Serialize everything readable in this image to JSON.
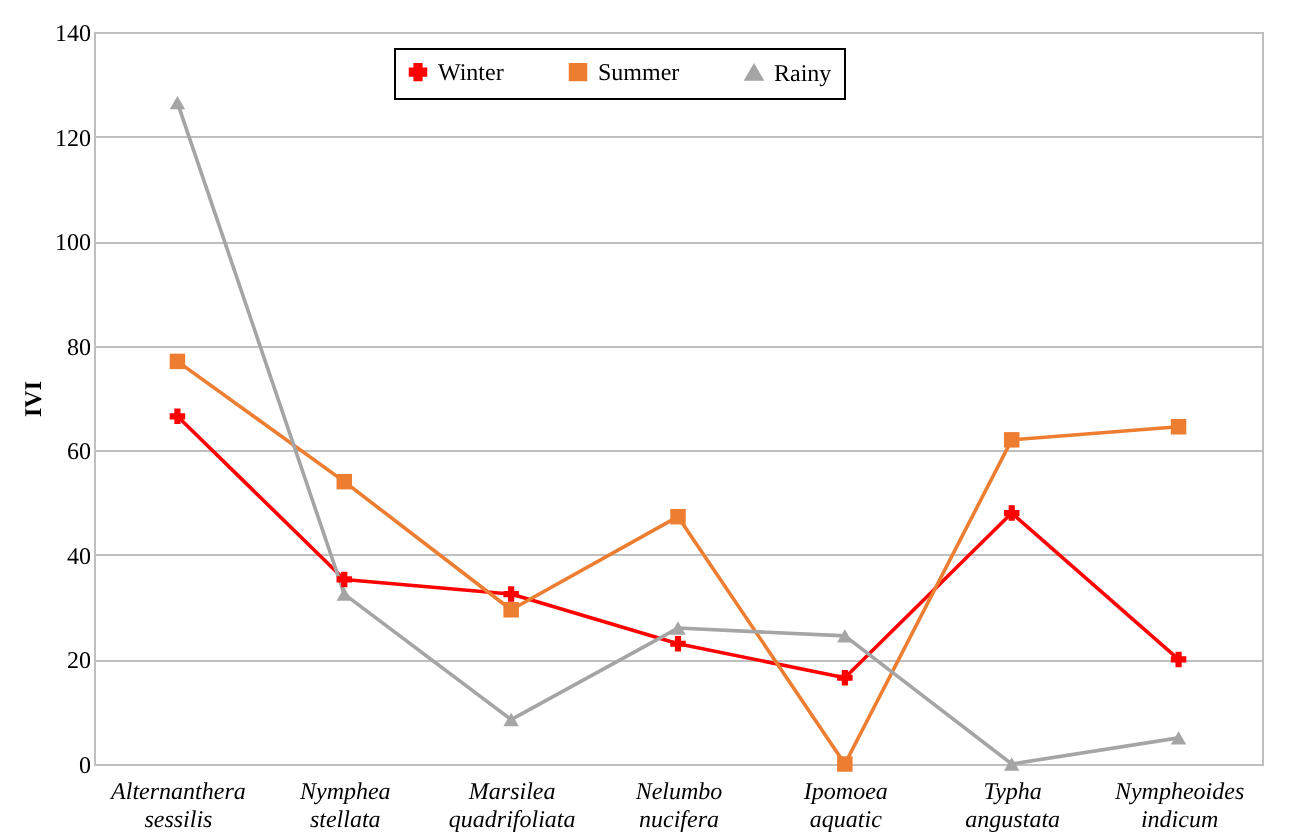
{
  "chart_data": {
    "type": "line",
    "ylabel": "IVI",
    "categories": [
      "Alternanthera sessilis",
      "Nymphea stellata",
      "Marsilea quadrifoliata",
      "Nelumbo nucifera",
      "Ipomoea aquatic",
      "Typha angustata",
      "Nympheoides indicum"
    ],
    "series": [
      {
        "name": "Winter",
        "color": "#ff0000",
        "marker": "cross",
        "values": [
          66.5,
          35.3,
          32.5,
          23,
          16.5,
          48,
          20
        ]
      },
      {
        "name": "Summer",
        "color": "#ed7d31",
        "marker": "square",
        "values": [
          77,
          54,
          29.5,
          47.3,
          0,
          62,
          64.5
        ]
      },
      {
        "name": "Rainy",
        "color": "#a5a5a5",
        "marker": "triangle",
        "values": [
          126.5,
          32.5,
          8.5,
          26,
          24.5,
          0,
          5
        ]
      }
    ],
    "ylim": [
      0,
      140
    ],
    "yticks": [
      0,
      20,
      40,
      60,
      80,
      100,
      120,
      140
    ],
    "grid": "y",
    "legend": "top",
    "line_style": "solid"
  }
}
